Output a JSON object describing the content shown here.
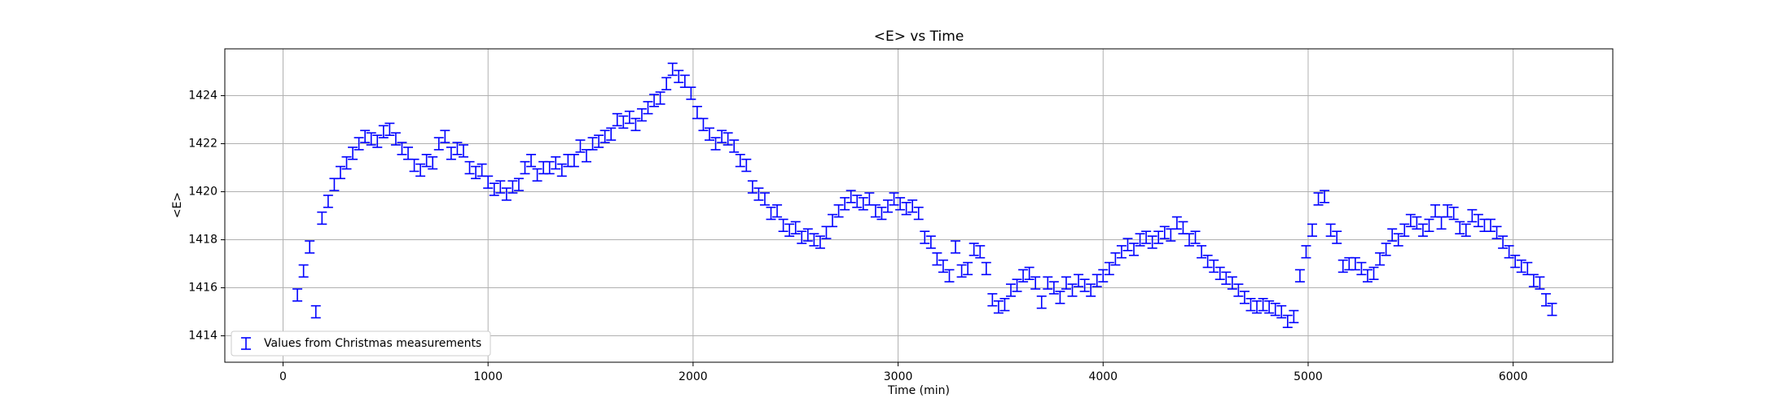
{
  "chart_data": {
    "type": "errorbar",
    "title": "<E> vs Time",
    "x_label": "Time (min)",
    "y_label": "<E>",
    "xlim": [
      -284,
      6486
    ],
    "ylim": [
      1412.9,
      1425.95
    ],
    "xticks": [
      0,
      1000,
      2000,
      3000,
      4000,
      5000,
      6000
    ],
    "yticks": [
      1414,
      1416,
      1418,
      1420,
      1422,
      1424
    ],
    "grid": true,
    "legend": "lower left",
    "series": [
      {
        "name": "Values from Christmas measurements",
        "color": "#0000ff",
        "error": 0.25,
        "x": [
          40,
          70,
          100,
          130,
          160,
          190,
          220,
          250,
          280,
          310,
          340,
          370,
          400,
          430,
          460,
          490,
          520,
          550,
          580,
          610,
          640,
          670,
          700,
          730,
          760,
          790,
          820,
          850,
          880,
          910,
          940,
          970,
          1000,
          1030,
          1060,
          1090,
          1120,
          1150,
          1180,
          1210,
          1240,
          1270,
          1300,
          1330,
          1360,
          1390,
          1420,
          1450,
          1480,
          1510,
          1540,
          1570,
          1600,
          1630,
          1660,
          1690,
          1720,
          1750,
          1780,
          1810,
          1840,
          1870,
          1900,
          1930,
          1960,
          1990,
          2020,
          2050,
          2080,
          2110,
          2140,
          2170,
          2200,
          2230,
          2260,
          2290,
          2320,
          2350,
          2380,
          2410,
          2440,
          2470,
          2500,
          2530,
          2560,
          2590,
          2620,
          2650,
          2680,
          2710,
          2740,
          2770,
          2800,
          2830,
          2860,
          2890,
          2920,
          2950,
          2980,
          3010,
          3040,
          3070,
          3100,
          3130,
          3160,
          3190,
          3220,
          3250,
          3280,
          3310,
          3340,
          3370,
          3400,
          3430,
          3460,
          3490,
          3520,
          3550,
          3580,
          3610,
          3640,
          3670,
          3700,
          3730,
          3760,
          3790,
          3820,
          3850,
          3880,
          3910,
          3940,
          3970,
          4000,
          4030,
          4060,
          4090,
          4120,
          4150,
          4180,
          4210,
          4240,
          4270,
          4300,
          4330,
          4360,
          4390,
          4420,
          4450,
          4480,
          4510,
          4540,
          4570,
          4600,
          4630,
          4660,
          4690,
          4720,
          4750,
          4780,
          4810,
          4840,
          4870,
          4900,
          4930,
          4960,
          4990,
          5020,
          5050,
          5080,
          5110,
          5140,
          5170,
          5200,
          5230,
          5260,
          5290,
          5320,
          5350,
          5380,
          5410,
          5440,
          5470,
          5500,
          5530,
          5560,
          5590,
          5620,
          5650,
          5680,
          5710,
          5740,
          5770,
          5800,
          5830,
          5860,
          5890,
          5920,
          5950,
          5980,
          6010,
          6040,
          6070,
          6100,
          6130,
          6160,
          6190
        ],
        "values": [
          1413.9,
          1415.7,
          1416.7,
          1417.7,
          1415.0,
          1418.9,
          1419.6,
          1420.3,
          1420.8,
          1421.2,
          1421.6,
          1422.0,
          1422.3,
          1422.2,
          1422.1,
          1422.5,
          1422.6,
          1422.2,
          1421.8,
          1421.6,
          1421.1,
          1420.9,
          1421.3,
          1421.2,
          1422.0,
          1422.3,
          1421.6,
          1421.8,
          1421.7,
          1421.0,
          1420.8,
          1420.9,
          1420.4,
          1420.1,
          1420.2,
          1419.9,
          1420.2,
          1420.3,
          1421.0,
          1421.3,
          1420.7,
          1421.0,
          1421.0,
          1421.2,
          1420.9,
          1421.3,
          1421.3,
          1421.9,
          1421.5,
          1422.0,
          1422.1,
          1422.3,
          1422.4,
          1423.0,
          1422.9,
          1423.1,
          1422.8,
          1423.2,
          1423.5,
          1423.8,
          1423.9,
          1424.5,
          1425.1,
          1424.8,
          1424.6,
          1424.1,
          1423.3,
          1422.8,
          1422.4,
          1422.0,
          1422.3,
          1422.2,
          1421.9,
          1421.3,
          1421.1,
          1420.2,
          1419.9,
          1419.7,
          1419.1,
          1419.2,
          1418.6,
          1418.4,
          1418.5,
          1418.1,
          1418.2,
          1418.0,
          1417.9,
          1418.3,
          1418.8,
          1419.2,
          1419.5,
          1419.8,
          1419.6,
          1419.5,
          1419.7,
          1419.2,
          1419.1,
          1419.4,
          1419.7,
          1419.5,
          1419.3,
          1419.4,
          1419.1,
          1418.1,
          1417.9,
          1417.2,
          1416.9,
          1416.5,
          1417.7,
          1416.7,
          1416.8,
          1417.6,
          1417.5,
          1416.8,
          1415.5,
          1415.2,
          1415.3,
          1415.9,
          1416.1,
          1416.5,
          1416.6,
          1416.2,
          1415.4,
          1416.2,
          1416.0,
          1415.6,
          1416.2,
          1415.9,
          1416.3,
          1416.1,
          1415.9,
          1416.3,
          1416.5,
          1416.8,
          1417.2,
          1417.5,
          1417.8,
          1417.6,
          1418.0,
          1418.1,
          1417.9,
          1418.1,
          1418.3,
          1418.2,
          1418.7,
          1418.5,
          1418.0,
          1418.1,
          1417.5,
          1417.1,
          1416.9,
          1416.6,
          1416.4,
          1416.2,
          1415.9,
          1415.6,
          1415.3,
          1415.2,
          1415.3,
          1415.2,
          1415.1,
          1415.0,
          1414.6,
          1414.8,
          1416.5,
          1417.5,
          1418.4,
          1419.7,
          1419.8,
          1418.4,
          1418.1,
          1416.9,
          1417.0,
          1417.0,
          1416.8,
          1416.5,
          1416.6,
          1417.2,
          1417.6,
          1418.2,
          1418.0,
          1418.4,
          1418.8,
          1418.7,
          1418.4,
          1418.6,
          1419.2,
          1418.7,
          1419.2,
          1419.1,
          1418.5,
          1418.4,
          1419.0,
          1418.8,
          1418.6,
          1418.6,
          1418.3,
          1417.9,
          1417.5,
          1417.1,
          1416.9,
          1416.8,
          1416.3,
          1416.2,
          1415.5,
          1415.1
        ]
      }
    ]
  }
}
